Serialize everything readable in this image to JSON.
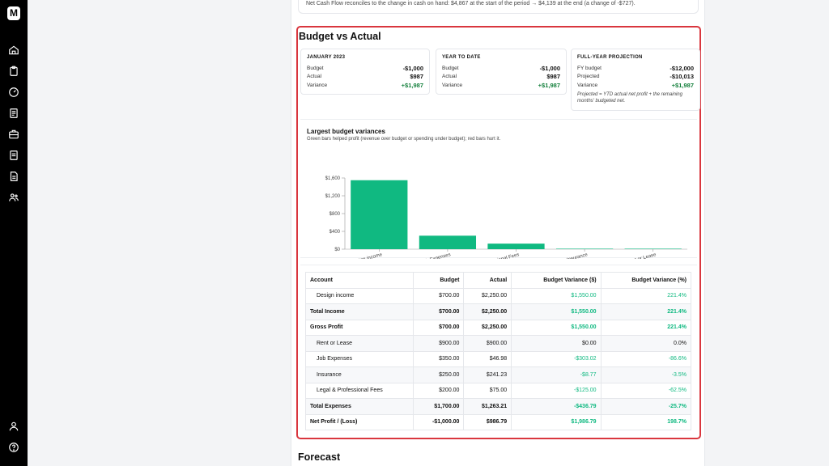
{
  "note": "Net Cash Flow reconciles to the change in cash on hand: $4,867 at the start of the period → $4,139 at the end (a change of -$727).",
  "section_title": "Budget vs Actual",
  "cards": [
    {
      "title": "JANUARY 2023",
      "rows": [
        {
          "label": "Budget",
          "value": "-$1,000"
        },
        {
          "label": "Actual",
          "value": "$987"
        },
        {
          "label": "Variance",
          "value": "+$1,987"
        }
      ]
    },
    {
      "title": "YEAR TO DATE",
      "rows": [
        {
          "label": "Budget",
          "value": "-$1,000"
        },
        {
          "label": "Actual",
          "value": "$987"
        },
        {
          "label": "Variance",
          "value": "+$1,987"
        }
      ]
    },
    {
      "title": "FULL-YEAR PROJECTION",
      "rows": [
        {
          "label": "FY budget",
          "value": "-$12,000"
        },
        {
          "label": "Projected",
          "value": "-$10,013"
        },
        {
          "label": "Variance",
          "value": "+$1,987"
        }
      ],
      "note": "Projected = YTD actual net profit + the remaining months' budgeted net."
    }
  ],
  "chart": {
    "title": "Largest budget variances",
    "subtitle": "Green bars helped profit (revenue over budget or spending under budget); red bars hurt it.",
    "bar_color": "#10b981"
  },
  "chart_data": {
    "type": "bar",
    "categories": [
      "Design income",
      "Job Expenses",
      "Legal & Professional Fees",
      "Insurance",
      "Rent or Lease"
    ],
    "values": [
      1550,
      303.02,
      125,
      8.77,
      0
    ],
    "yticks": [
      "$0",
      "$400",
      "$800",
      "$1,200",
      "$1,600"
    ],
    "ylim": [
      0,
      1600
    ]
  },
  "table": {
    "headers": [
      "Account",
      "Budget",
      "Actual",
      "Budget Variance ($)",
      "Budget Variance (%)"
    ],
    "rows": [
      {
        "cells": [
          "Design income",
          "$700.00",
          "$2,250.00",
          "$1,550.00",
          "221.4%"
        ],
        "bold": false,
        "indent": true,
        "green": true
      },
      {
        "cells": [
          "Total Income",
          "$700.00",
          "$2,250.00",
          "$1,550.00",
          "221.4%"
        ],
        "bold": true,
        "indent": false,
        "green": true
      },
      {
        "cells": [
          "Gross Profit",
          "$700.00",
          "$2,250.00",
          "$1,550.00",
          "221.4%"
        ],
        "bold": true,
        "indent": false,
        "green": true
      },
      {
        "cells": [
          "Rent or Lease",
          "$900.00",
          "$900.00",
          "$0.00",
          "0.0%"
        ],
        "bold": false,
        "indent": true,
        "green": false
      },
      {
        "cells": [
          "Job Expenses",
          "$350.00",
          "$46.98",
          "-$303.02",
          "-86.6%"
        ],
        "bold": false,
        "indent": true,
        "green": true
      },
      {
        "cells": [
          "Insurance",
          "$250.00",
          "$241.23",
          "-$8.77",
          "-3.5%"
        ],
        "bold": false,
        "indent": true,
        "green": true
      },
      {
        "cells": [
          "Legal & Professional Fees",
          "$200.00",
          "$75.00",
          "-$125.00",
          "-62.5%"
        ],
        "bold": false,
        "indent": true,
        "green": true
      },
      {
        "cells": [
          "Total Expenses",
          "$1,700.00",
          "$1,263.21",
          "-$436.79",
          "-25.7%"
        ],
        "bold": true,
        "indent": false,
        "green": true
      },
      {
        "cells": [
          "Net Profit / (Loss)",
          "-$1,000.00",
          "$986.79",
          "$1,986.79",
          "198.7%"
        ],
        "bold": true,
        "indent": false,
        "green": true
      }
    ]
  },
  "forecast_title": "Forecast",
  "sidebar": {
    "logo": "M",
    "icons": [
      "home-icon",
      "clipboard-icon",
      "gauge-icon",
      "receipt-icon",
      "briefcase-icon",
      "document-icon",
      "file-text-icon",
      "users-icon",
      "user-icon",
      "help-icon"
    ]
  }
}
